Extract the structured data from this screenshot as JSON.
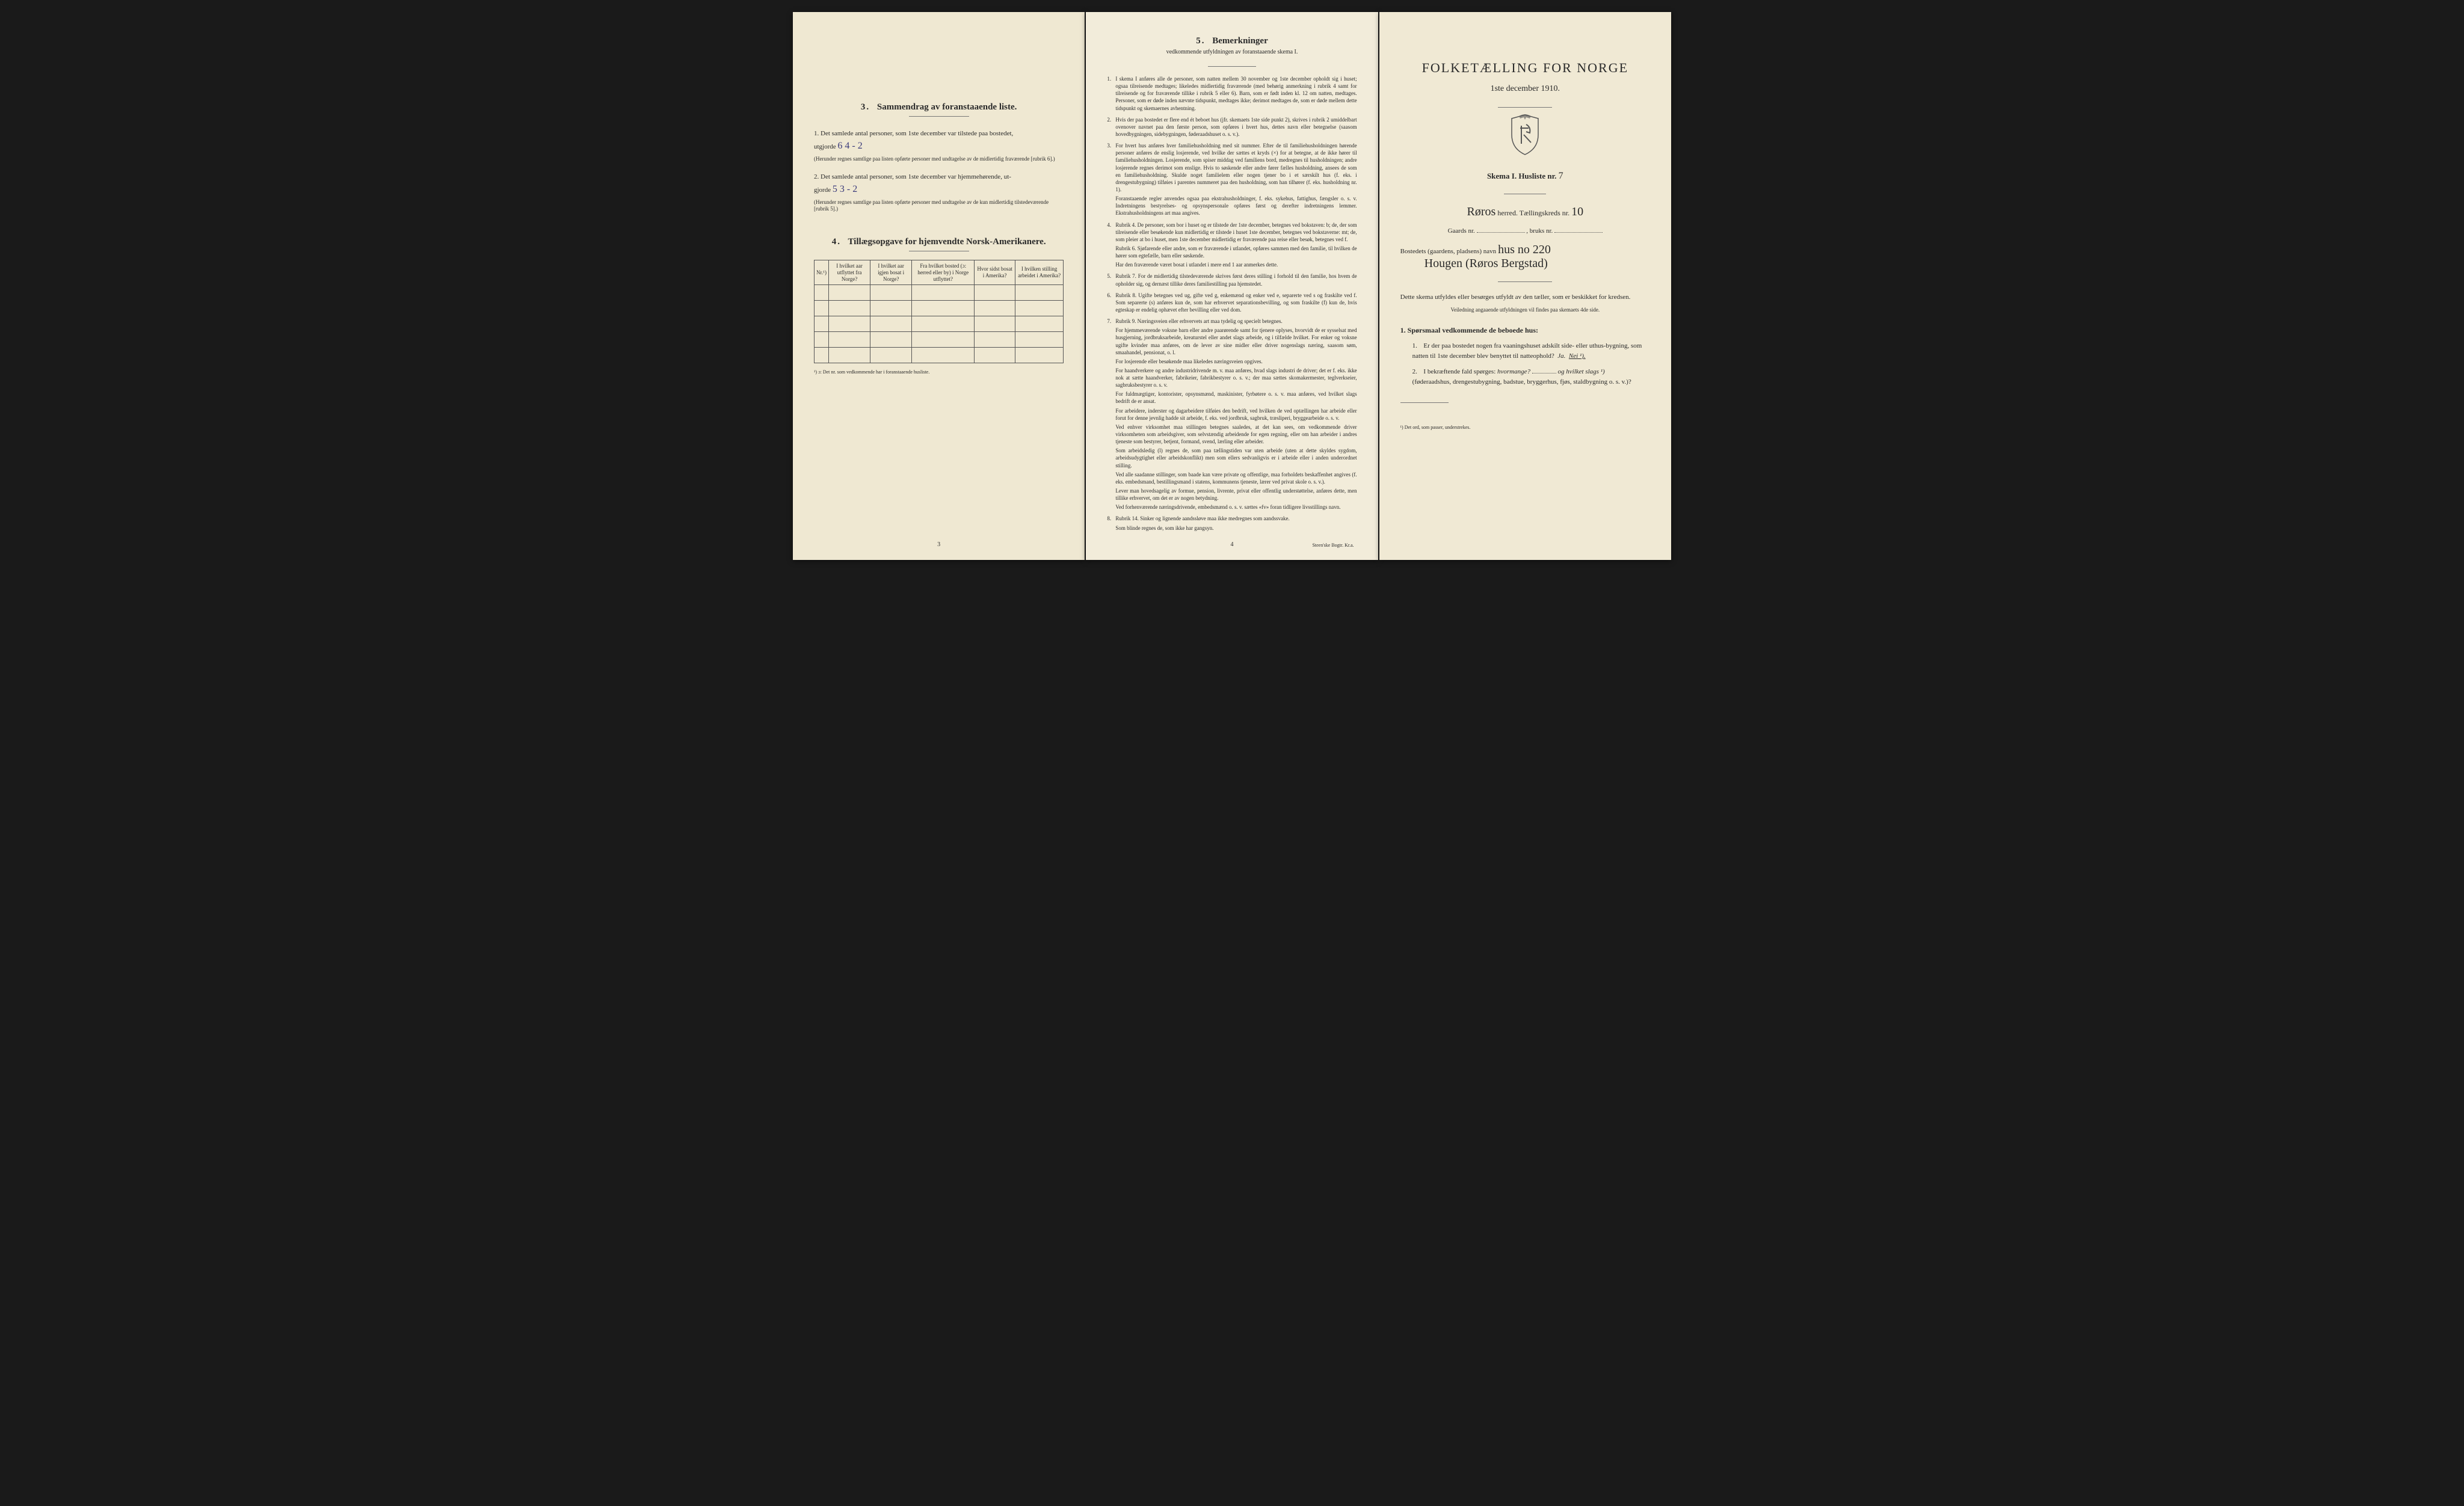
{
  "page1": {
    "section3": {
      "title_num": "3.",
      "title": "Sammendrag av foranstaaende liste.",
      "q1_lead": "1. Det samlede antal personer, som 1ste december var tilstede paa bostedet,",
      "q1_label": "utgjorde",
      "q1_value": "6    4 - 2",
      "q1_note": "(Herunder regnes samtlige paa listen opførte personer med undtagelse av de midlertidig fraværende [rubrik 6].)",
      "q2_lead": "2. Det samlede antal personer, som 1ste december var hjemmehørende, ut-",
      "q2_label": "gjorde",
      "q2_value": "5    3 - 2",
      "q2_note": "(Herunder regnes samtlige paa listen opførte personer med undtagelse av de kun midlertidig tilstedeværende [rubrik 5].)"
    },
    "section4": {
      "title_num": "4.",
      "title": "Tillægsopgave for hjemvendte Norsk-Amerikanere.",
      "cols": [
        "Nr.¹)",
        "I hvilket aar utflyttet fra Norge?",
        "I hvilket aar igjen bosat i Norge?",
        "Fra hvilket bosted (ɔ: herred eller by) i Norge utflyttet?",
        "Hvor sidst bosat i Amerika?",
        "I hvilken stilling arbeidet i Amerika?"
      ],
      "footnote": "¹) ɔ: Det nr. som vedkommende har i foranstaaende husliste.",
      "rows": 5
    },
    "pagenum": "3"
  },
  "page2": {
    "title_num": "5.",
    "title": "Bemerkninger",
    "subtitle": "vedkommende utfyldningen av foranstaaende skema I.",
    "items": [
      {
        "n": "1.",
        "t": "I skema I anføres alle de personer, som natten mellem 30 november og 1ste december opholdt sig i huset; ogsaa tilreisende medtages; likeledes midlertidig fraværende (med behørig anmerkning i rubrik 4 samt for tilreisende og for fraværende tillike i rubrik 5 eller 6). Barn, som er født inden kl. 12 om natten, medtages. Personer, som er døde inden nævnte tidspunkt, medtages ikke; derimot medtages de, som er døde mellem dette tidspunkt og skemaernes avhentning."
      },
      {
        "n": "2.",
        "t": "Hvis der paa bostedet er flere end ét beboet hus (jfr. skemaets 1ste side punkt 2), skrives i rubrik 2 umiddelbart ovenover navnet paa den første person, som opføres i hvert hus, dettes navn eller betegnelse (saasom hovedbygningen, sidebygningen, føderaadshuset o. s. v.)."
      },
      {
        "n": "3.",
        "t": "For hvert hus anføres hver familiehusholdning med sit nummer. Efter de til familiehusholdningen hørende personer anføres de enslig losjerende, ved hvilke der sættes et kryds (×) for at betegne, at de ikke hører til familiehusholdningen. Losjerende, som spiser middag ved familiens bord, medregnes til husholdningen; andre losjerende regnes derimot som enslige. Hvis to søskende eller andre fører fælles husholdning, ansees de som en familiehusholdning. Skulde noget familielem eller nogen tjener bo i et særskilt hus (f. eks. i drengestubygning) tilføies i parentes nummeret paa den husholdning, som han tilhører (f. eks. husholdning nr. 1).",
        "p": [
          "Foranstaaende regler anvendes ogsaa paa ekstrahusholdninger, f. eks. sykehus, fattighus, fængsler o. s. v. Indretningens bestyrelses- og opsynspersonale opføres først og derefter indretningens lemmer. Ekstrahusholdningens art maa angives."
        ]
      },
      {
        "n": "4.",
        "t": "Rubrik 4. De personer, som bor i huset og er tilstede der 1ste december, betegnes ved bokstaven: b; de, der som tilreisende eller besøkende kun midlertidig er tilstede i huset 1ste december, betegnes ved bokstaverne: mt; de, som pleier at bo i huset, men 1ste december midlertidig er fraværende paa reise eller besøk, betegnes ved f.",
        "p": [
          "Rubrik 6. Sjøfarende eller andre, som er fraværende i utlandet, opføres sammen med den familie, til hvilken de hører som egtefælle, barn eller søskende.",
          "Har den fraværende været bosat i utlandet i mere end 1 aar anmerkes dette."
        ]
      },
      {
        "n": "5.",
        "t": "Rubrik 7. For de midlertidig tilstedeværende skrives først deres stilling i forhold til den familie, hos hvem de opholder sig, og dernæst tillike deres familiestilling paa hjemstedet."
      },
      {
        "n": "6.",
        "t": "Rubrik 8. Ugifte betegnes ved ug, gifte ved g, enkemænd og enker ved e, separerte ved s og fraskilte ved f. Som separerte (s) anføres kun de, som har erhvervet separationsbevilling, og som fraskilte (f) kun de, hvis egteskap er endelig ophævet efter bevilling eller ved dom."
      },
      {
        "n": "7.",
        "t": "Rubrik 9. Næringsveien eller erhvervets art maa tydelig og specielt betegnes.",
        "p": [
          "For hjemmeværende voksne barn eller andre paarørende samt for tjenere oplyses, hvorvidt de er sysselsat med husgjerning, jordbruksarbeide, kreaturstel eller andet slags arbeide, og i tilfælde hvilket. For enker og voksne ugifte kvinder maa anføres, om de lever av sine midler eller driver nogenslags næring, saasom søm, smaahandel, pensionat, o. l.",
          "For losjerende eller besøkende maa likeledes næringsveien opgives.",
          "For haandverkere og andre industridrivende m. v. maa anføres, hvad slags industri de driver; det er f. eks. ikke nok at sætte haandverker, fabrikeier, fabrikbestyrer o. s. v.; der maa sættes skomakermester, teglverkseier, sagbruksbestyrer o. s. v.",
          "For fuldmægtiger, kontorister, opsynsmænd, maskinister, fyrbøtere o. s. v. maa anføres, ved hvilket slags bedrift de er ansat.",
          "For arbeidere, inderster og dagarbeidere tilføies den bedrift, ved hvilken de ved optællingen har arbeide eller forut for denne jevnlig hadde sit arbeide, f. eks. ved jordbruk, sagbruk, træsliperi, bryggearbeide o. s. v.",
          "Ved enhver virksomhet maa stillingen betegnes saaledes, at det kan sees, om vedkommende driver virksomheten som arbeidsgiver, som selvstændig arbeidende for egen regning, eller om han arbeider i andres tjeneste som bestyrer, betjent, formand, svend, lærling eller arbeider.",
          "Som arbeidsledig (l) regnes de, som paa tællingstiden var uten arbeide (uten at dette skyldes sygdom, arbeidsudygtighet eller arbeidskonflikt) men som ellers sedvanligvis er i arbeide eller i anden underordnet stilling.",
          "Ved alle saadanne stillinger, som baade kan være private og offentlige, maa forholdets beskaffenhet angives (f. eks. embedsmand, bestillingsmand i statens, kommunens tjeneste, lærer ved privat skole o. s. v.).",
          "Lever man hovedsagelig av formue, pension, livrente, privat eller offentlig understøttelse, anføres dette, men tillike erhvervet, om det er av nogen betydning.",
          "Ved forhenværende næringsdrivende, embedsmænd o. s. v. sættes «fv» foran tidligere livsstillings navn."
        ]
      },
      {
        "n": "8.",
        "t": "Rubrik 14. Sinker og lignende aandssløve maa ikke medregnes som aandssvake.",
        "p": [
          "Som blinde regnes de, som ikke har gangsyn."
        ]
      }
    ],
    "pagenum": "4",
    "printer": "Steen'ske Bogtr. Kr.a."
  },
  "page3": {
    "main_title": "FOLKETÆLLING FOR NORGE",
    "sub_title": "1ste december 1910.",
    "skema_label": "Skema I.  Husliste nr.",
    "husliste_nr": "7",
    "herred_value": "Røros",
    "herred_label": "herred.  Tællingskreds nr.",
    "kreds_nr": "10",
    "gaards_label": "Gaards nr.",
    "bruks_label": ", bruks nr.",
    "bosted_label": "Bostedets (gaardens, pladsens) navn",
    "bosted_value1": "hus no 220",
    "bosted_value2": "Hougen (Røros Bergstad)",
    "instr": "Dette skema utfyldes eller besørges utfyldt av den tæller, som er beskikket for kredsen.",
    "instr_small": "Veiledning angaaende utfyldningen vil findes paa skemaets 4de side.",
    "q1_title": "1. Spørsmaal vedkommende de beboede hus:",
    "sq1": "Er der paa bostedet nogen fra vaaningshuset adskilt side- eller uthus-bygning, som natten til 1ste december blev benyttet til natteophold?",
    "sq1_ja": "Ja.",
    "sq1_nei": "Nei ¹).",
    "sq2": "I bekræftende fald spørges:",
    "sq2_hv": "hvormange?",
    "sq2_og": "og hvilket slags ¹)",
    "sq2_rest": "(føderaadshus, drengestubygning, badstue, bryggerhus, fjøs, staldbygning o. s. v.)?",
    "endnote": "¹) Det ord, som passer, understrekes."
  }
}
